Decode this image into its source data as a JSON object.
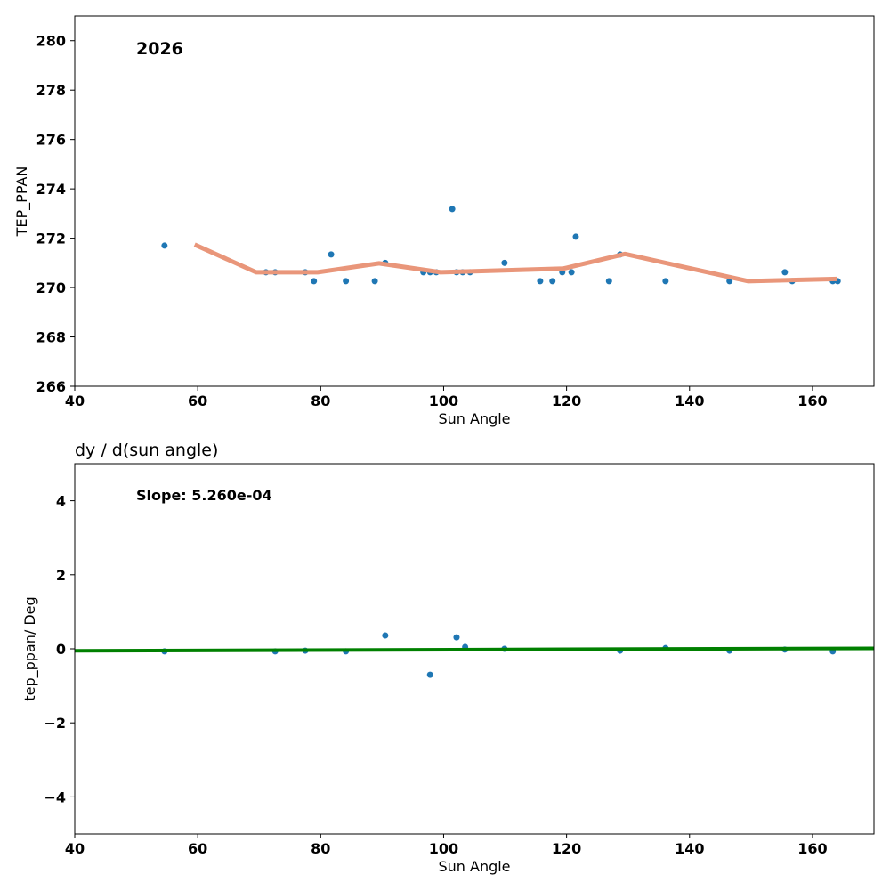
{
  "chart_data": [
    {
      "type": "scatter",
      "annotation": "2026",
      "xlabel": "Sun Angle",
      "ylabel": "TEP_PPAN",
      "xlim": [
        40,
        170
      ],
      "ylim": [
        266,
        281
      ],
      "xticks": [
        40,
        60,
        80,
        100,
        120,
        140,
        160
      ],
      "yticks": [
        266,
        268,
        270,
        272,
        274,
        276,
        278,
        280
      ],
      "points": {
        "x": [
          54.6,
          71.1,
          72.6,
          77.5,
          78.9,
          81.7,
          84.1,
          88.8,
          90.5,
          96.7,
          97.8,
          98.8,
          101.4,
          102.1,
          103.1,
          104.3,
          109.9,
          115.7,
          117.7,
          119.3,
          120.8,
          121.5,
          126.9,
          128.7,
          136.1,
          146.5,
          155.5,
          156.7,
          163.3,
          164.1
        ],
        "y": [
          271.7,
          270.62,
          270.62,
          270.62,
          270.26,
          271.34,
          270.26,
          270.26,
          271.0,
          270.62,
          270.62,
          270.62,
          273.18,
          270.62,
          270.62,
          270.62,
          271.0,
          270.26,
          270.26,
          270.62,
          270.62,
          272.06,
          270.26,
          271.34,
          270.26,
          270.26,
          270.62,
          270.26,
          270.26,
          270.26
        ],
        "color": "#1f77b4"
      },
      "line": {
        "x": [
          59.5,
          69.5,
          79.5,
          89.5,
          99.5,
          119.5,
          129.5,
          149.5,
          164
        ],
        "y": [
          271.74,
          270.62,
          270.62,
          270.98,
          270.62,
          270.77,
          271.36,
          270.26,
          270.35
        ],
        "color": "#e9967a"
      }
    },
    {
      "type": "scatter",
      "title": "dy / d(sun angle)",
      "annotation": "Slope: 5.260e-04",
      "xlabel": "Sun Angle",
      "ylabel": "tep_ppan/ Deg",
      "xlim": [
        40,
        170
      ],
      "ylim": [
        -5,
        5
      ],
      "xticks": [
        40,
        60,
        80,
        100,
        120,
        140,
        160
      ],
      "yticks": [
        -4,
        -2,
        0,
        2,
        4
      ],
      "points": {
        "x": [
          54.6,
          72.6,
          77.5,
          84.1,
          90.5,
          97.8,
          102.1,
          103.5,
          109.9,
          128.7,
          136.1,
          146.5,
          155.5,
          163.3
        ],
        "y": [
          -0.07,
          -0.07,
          -0.05,
          -0.07,
          0.36,
          -0.7,
          0.31,
          0.05,
          0,
          -0.05,
          0.02,
          -0.05,
          -0.02,
          -0.07
        ],
        "color": "#1f77b4"
      },
      "line": {
        "x": [
          40,
          170
        ],
        "y": [
          -0.055,
          0.013
        ],
        "color": "#008000"
      }
    }
  ]
}
